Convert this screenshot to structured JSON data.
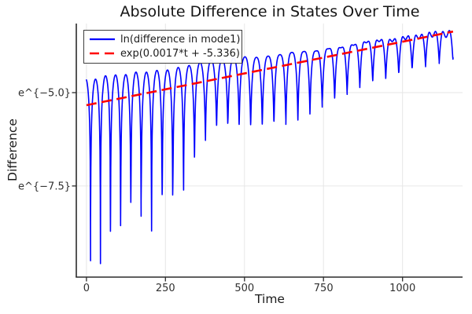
{
  "chart_data": {
    "type": "line",
    "title": "Absolute Difference in States Over Time",
    "xlabel": "Time",
    "ylabel": "Difference",
    "background": "#ffffff",
    "grid": {
      "show": true,
      "color": "#e6e6e6"
    },
    "y_scale": "ln",
    "xlim": [
      -32,
      1190
    ],
    "ylim_ln": [
      -9.94,
      -3.15
    ],
    "x_ticks": [
      {
        "value": 0,
        "label": "0"
      },
      {
        "value": 250,
        "label": "250"
      },
      {
        "value": 500,
        "label": "500"
      },
      {
        "value": 750,
        "label": "750"
      },
      {
        "value": 1000,
        "label": "1000"
      }
    ],
    "y_ticks": [
      {
        "ln": -5.0,
        "label": "e^{−5.0}"
      },
      {
        "ln": -7.5,
        "label": "e^{−7.5}"
      }
    ],
    "legend_position": "top-left-inside",
    "series": [
      {
        "name": "ln(difference in mode1)",
        "color": "#0000ff",
        "style": "solid",
        "line_width": 1.6,
        "t_range": [
          0,
          1160
        ],
        "model": {
          "description": "Absolute difference on log scale: ~32 |sin|-shaped lobes with sharp downward spikes at zero crossings; lobe tops follow the exponential fit, spike depth shrinks over time; lobes develop a notched double peak near the end",
          "n_arches": 32,
          "arch_width_t_start": 31,
          "arch_width_growth": 0.005,
          "phase_t_offset": 18,
          "peak_env_ln_intercept": -4.65,
          "peak_env_ln_slope": 0.001135,
          "dip_floor_lnF_breakpoints": [
            [
              0,
              -7.0
            ],
            [
              200,
              -6.2
            ],
            [
              280,
              -5.0
            ],
            [
              330,
              -2.8
            ],
            [
              400,
              -1.75
            ],
            [
              520,
              -1.9
            ],
            [
              650,
              -2.0
            ],
            [
              780,
              -1.45
            ],
            [
              900,
              -1.15
            ],
            [
              1020,
              -0.95
            ],
            [
              1163,
              -0.78
            ]
          ],
          "spike_depth_ln_range": [
            -5.2,
            -3.2
          ],
          "notch_gain": 0.55,
          "notch_power": 4
        }
      },
      {
        "name": "exp(0.0017*t + -5.336)",
        "color": "#ff0000",
        "style": "dash",
        "line_width": 2.6,
        "t_range": [
          0,
          1160
        ],
        "fit": {
          "slope": 0.0017,
          "intercept": -5.336
        }
      }
    ]
  },
  "legend": {
    "entries": [
      {
        "label": "ln(difference in mode1)",
        "color": "#0000ff",
        "dash": false
      },
      {
        "label": "exp(0.0017*t + -5.336)",
        "color": "#ff0000",
        "dash": true
      }
    ]
  },
  "axis": {
    "spine_color": "#2b2b2b",
    "tick_color": "#2b2b2b",
    "tick_label_color": "#303030",
    "label_color": "#1a1a1a"
  }
}
